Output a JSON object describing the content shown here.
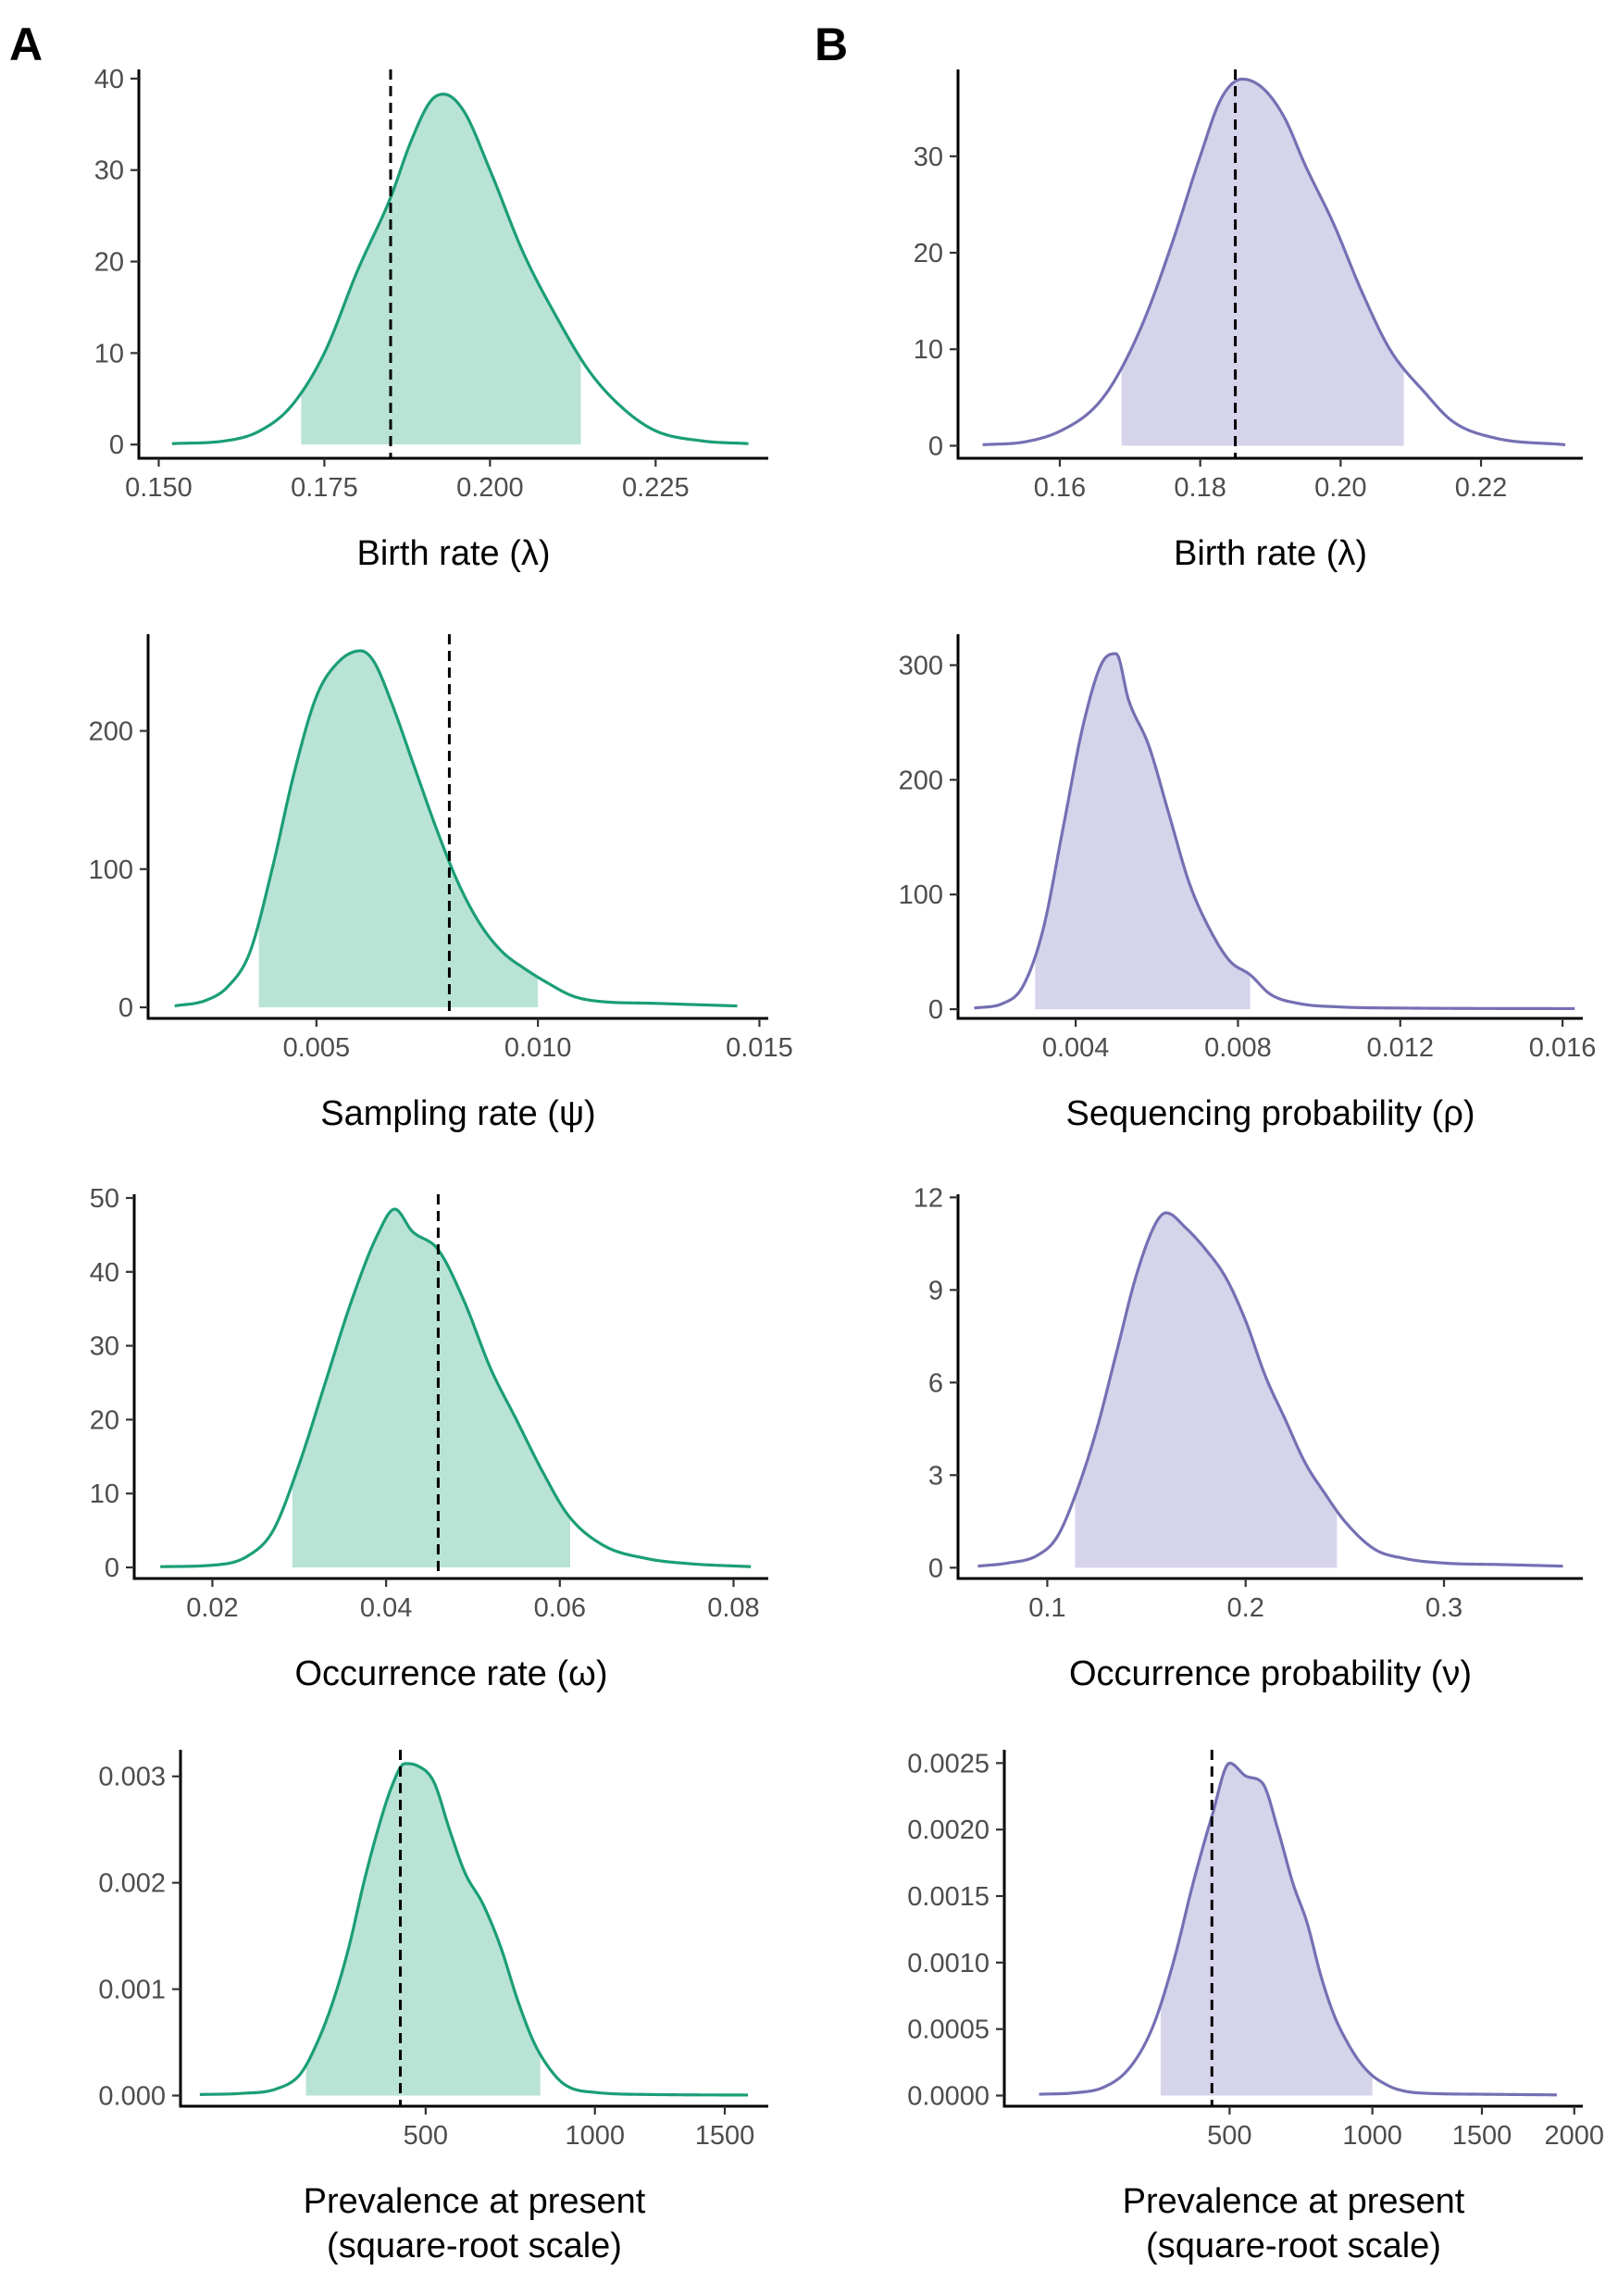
{
  "figure": {
    "panel_labels": [
      "A",
      "B"
    ],
    "colors": {
      "left_line": "#1b9e77",
      "left_fill": "#b9e3d5",
      "right_line": "#7570b3",
      "right_fill": "#d6d4eb",
      "reference_line": "#000000"
    }
  },
  "chart_data": [
    {
      "id": "A1",
      "column": "A",
      "type": "area",
      "xlabel": [
        "Birth rate (λ)"
      ],
      "xlim": [
        0.147,
        0.242
      ],
      "ylim": [
        -1.5,
        41
      ],
      "xticks": [
        0.15,
        0.175,
        0.2,
        0.225
      ],
      "xtick_labels": [
        "0.150",
        "0.175",
        "0.200",
        "0.225"
      ],
      "yticks": [
        0,
        10,
        20,
        30,
        40
      ],
      "ytick_labels": [
        "0",
        "10",
        "20",
        "30",
        "40"
      ],
      "x_scale": "linear",
      "reference_x": 0.185,
      "fill_interval": [
        0.1715,
        0.2137
      ],
      "density": [
        [
          0.152,
          0.1
        ],
        [
          0.16,
          0.4
        ],
        [
          0.165,
          1.4
        ],
        [
          0.17,
          4.2
        ],
        [
          0.175,
          10
        ],
        [
          0.18,
          19
        ],
        [
          0.185,
          27
        ],
        [
          0.188,
          33
        ],
        [
          0.191,
          37.5
        ],
        [
          0.193,
          38.3
        ],
        [
          0.196,
          36.5
        ],
        [
          0.2,
          30
        ],
        [
          0.205,
          21
        ],
        [
          0.21,
          14
        ],
        [
          0.215,
          8
        ],
        [
          0.22,
          4
        ],
        [
          0.225,
          1.5
        ],
        [
          0.232,
          0.4
        ],
        [
          0.239,
          0.1
        ]
      ]
    },
    {
      "id": "A2",
      "column": "A",
      "type": "area",
      "xlabel": [
        "Sampling rate (ψ)"
      ],
      "xlim": [
        0.0012,
        0.0152
      ],
      "ylim": [
        -8,
        270
      ],
      "xticks": [
        0.005,
        0.01,
        0.015
      ],
      "xtick_labels": [
        "0.005",
        "0.010",
        "0.015"
      ],
      "yticks": [
        0,
        100,
        200
      ],
      "ytick_labels": [
        "0",
        "100",
        "200"
      ],
      "x_scale": "linear",
      "reference_x": 0.008,
      "fill_interval": [
        0.0037,
        0.01
      ],
      "density": [
        [
          0.0018,
          1
        ],
        [
          0.0025,
          5
        ],
        [
          0.003,
          15
        ],
        [
          0.0035,
          40
        ],
        [
          0.004,
          100
        ],
        [
          0.0045,
          170
        ],
        [
          0.005,
          225
        ],
        [
          0.0055,
          250
        ],
        [
          0.006,
          258
        ],
        [
          0.0063,
          250
        ],
        [
          0.0067,
          220
        ],
        [
          0.0072,
          175
        ],
        [
          0.0077,
          130
        ],
        [
          0.0082,
          90
        ],
        [
          0.0087,
          60
        ],
        [
          0.0092,
          40
        ],
        [
          0.0097,
          28
        ],
        [
          0.0102,
          18
        ],
        [
          0.0108,
          8
        ],
        [
          0.0115,
          4
        ],
        [
          0.0125,
          3
        ],
        [
          0.0135,
          2
        ],
        [
          0.0145,
          1
        ]
      ]
    },
    {
      "id": "A3",
      "column": "A",
      "type": "area",
      "xlabel": [
        "Occurrence rate (ω)"
      ],
      "xlim": [
        0.011,
        0.084
      ],
      "ylim": [
        -1.5,
        50.5
      ],
      "xticks": [
        0.02,
        0.04,
        0.06,
        0.08
      ],
      "xtick_labels": [
        "0.02",
        "0.04",
        "0.06",
        "0.08"
      ],
      "yticks": [
        0,
        10,
        20,
        30,
        40,
        50
      ],
      "ytick_labels": [
        "0",
        "10",
        "20",
        "30",
        "40",
        "50"
      ],
      "x_scale": "linear",
      "reference_x": 0.046,
      "fill_interval": [
        0.0292,
        0.0612
      ],
      "density": [
        [
          0.014,
          0.1
        ],
        [
          0.02,
          0.3
        ],
        [
          0.024,
          1.5
        ],
        [
          0.027,
          5
        ],
        [
          0.03,
          14
        ],
        [
          0.033,
          25
        ],
        [
          0.036,
          36
        ],
        [
          0.039,
          45
        ],
        [
          0.041,
          48.5
        ],
        [
          0.043,
          45.5
        ],
        [
          0.046,
          43
        ],
        [
          0.049,
          36
        ],
        [
          0.052,
          27
        ],
        [
          0.055,
          20
        ],
        [
          0.058,
          13
        ],
        [
          0.061,
          7
        ],
        [
          0.065,
          3
        ],
        [
          0.07,
          1.2
        ],
        [
          0.075,
          0.5
        ],
        [
          0.082,
          0.1
        ]
      ]
    },
    {
      "id": "A4",
      "column": "A",
      "type": "area",
      "xlabel": [
        "Prevalence at present",
        "(square-root scale)"
      ],
      "xlim": [
        80,
        1690
      ],
      "ylim": [
        -0.0001,
        0.00325
      ],
      "xticks": [
        500,
        1000,
        1500
      ],
      "xtick_labels": [
        "500",
        "1000",
        "1500"
      ],
      "yticks": [
        0,
        0.001,
        0.002,
        0.003
      ],
      "ytick_labels": [
        "0.000",
        "0.001",
        "0.002",
        "0.003"
      ],
      "x_scale": "sqrt",
      "reference_x": 440,
      "fill_interval": [
        250,
        820
      ],
      "density": [
        [
          100,
          1e-05
        ],
        [
          150,
          2e-05
        ],
        [
          200,
          6e-05
        ],
        [
          240,
          0.0002
        ],
        [
          270,
          0.0005
        ],
        [
          300,
          0.0009
        ],
        [
          330,
          0.0014
        ],
        [
          360,
          0.002
        ],
        [
          390,
          0.0025
        ],
        [
          420,
          0.0029
        ],
        [
          450,
          0.00312
        ],
        [
          480,
          0.0031
        ],
        [
          520,
          0.00295
        ],
        [
          560,
          0.0025
        ],
        [
          600,
          0.0021
        ],
        [
          650,
          0.0018
        ],
        [
          700,
          0.0014
        ],
        [
          750,
          0.0009
        ],
        [
          800,
          0.0005
        ],
        [
          850,
          0.00025
        ],
        [
          900,
          0.0001
        ],
        [
          1000,
          3e-05
        ],
        [
          1200,
          1e-05
        ],
        [
          1600,
          5e-06
        ]
      ]
    },
    {
      "id": "B1",
      "column": "B",
      "type": "area",
      "xlabel": [
        "Birth rate (λ)"
      ],
      "xlim": [
        0.1455,
        0.2345
      ],
      "ylim": [
        -1.3,
        39
      ],
      "xticks": [
        0.16,
        0.18,
        0.2,
        0.22
      ],
      "xtick_labels": [
        "0.16",
        "0.18",
        "0.20",
        "0.22"
      ],
      "yticks": [
        0,
        10,
        20,
        30
      ],
      "ytick_labels": [
        "0",
        "10",
        "20",
        "30"
      ],
      "x_scale": "linear",
      "reference_x": 0.185,
      "fill_interval": [
        0.1688,
        0.209
      ],
      "density": [
        [
          0.149,
          0.1
        ],
        [
          0.155,
          0.4
        ],
        [
          0.16,
          1.5
        ],
        [
          0.165,
          4
        ],
        [
          0.168,
          7
        ],
        [
          0.172,
          13
        ],
        [
          0.176,
          21
        ],
        [
          0.18,
          30
        ],
        [
          0.183,
          36
        ],
        [
          0.186,
          38
        ],
        [
          0.189,
          37
        ],
        [
          0.192,
          34
        ],
        [
          0.195,
          29
        ],
        [
          0.199,
          23
        ],
        [
          0.203,
          16
        ],
        [
          0.207,
          10
        ],
        [
          0.212,
          5.5
        ],
        [
          0.216,
          2.5
        ],
        [
          0.222,
          0.8
        ],
        [
          0.232,
          0.1
        ]
      ]
    },
    {
      "id": "B2",
      "column": "B",
      "type": "area",
      "xlabel": [
        "Sequencing probability (ρ)"
      ],
      "xlim": [
        0.0011,
        0.0165
      ],
      "ylim": [
        -8,
        327
      ],
      "xticks": [
        0.004,
        0.008,
        0.012,
        0.016
      ],
      "xtick_labels": [
        "0.004",
        "0.008",
        "0.012",
        "0.016"
      ],
      "yticks": [
        0,
        100,
        200,
        300
      ],
      "ytick_labels": [
        "0",
        "100",
        "200",
        "300"
      ],
      "x_scale": "linear",
      "reference_x": null,
      "fill_interval": [
        0.003,
        0.0083
      ],
      "density": [
        [
          0.0015,
          1
        ],
        [
          0.0022,
          5
        ],
        [
          0.0027,
          20
        ],
        [
          0.0032,
          70
        ],
        [
          0.0037,
          160
        ],
        [
          0.0042,
          250
        ],
        [
          0.0047,
          305
        ],
        [
          0.005,
          310
        ],
        [
          0.0053,
          270
        ],
        [
          0.0058,
          230
        ],
        [
          0.0063,
          170
        ],
        [
          0.0068,
          110
        ],
        [
          0.0073,
          70
        ],
        [
          0.0078,
          42
        ],
        [
          0.0083,
          30
        ],
        [
          0.0088,
          13
        ],
        [
          0.0095,
          5
        ],
        [
          0.0105,
          2
        ],
        [
          0.012,
          1
        ],
        [
          0.0163,
          0.5
        ]
      ]
    },
    {
      "id": "B3",
      "column": "B",
      "type": "area",
      "xlabel": [
        "Occurrence probability (ν)"
      ],
      "xlim": [
        0.055,
        0.37
      ],
      "ylim": [
        -0.35,
        12.1
      ],
      "xticks": [
        0.1,
        0.2,
        0.3
      ],
      "xtick_labels": [
        "0.1",
        "0.2",
        "0.3"
      ],
      "yticks": [
        0,
        3,
        6,
        9,
        12
      ],
      "ytick_labels": [
        "0",
        "3",
        "6",
        "9",
        "12"
      ],
      "x_scale": "linear",
      "reference_x": null,
      "fill_interval": [
        0.114,
        0.246
      ],
      "density": [
        [
          0.065,
          0.05
        ],
        [
          0.08,
          0.15
        ],
        [
          0.095,
          0.4
        ],
        [
          0.105,
          1
        ],
        [
          0.115,
          2.5
        ],
        [
          0.125,
          4.5
        ],
        [
          0.135,
          7
        ],
        [
          0.145,
          9.5
        ],
        [
          0.155,
          11.2
        ],
        [
          0.16,
          11.5
        ],
        [
          0.17,
          11
        ],
        [
          0.18,
          10.3
        ],
        [
          0.19,
          9.4
        ],
        [
          0.2,
          8
        ],
        [
          0.21,
          6.2
        ],
        [
          0.22,
          4.8
        ],
        [
          0.23,
          3.4
        ],
        [
          0.24,
          2.4
        ],
        [
          0.25,
          1.5
        ],
        [
          0.265,
          0.6
        ],
        [
          0.28,
          0.3
        ],
        [
          0.3,
          0.15
        ],
        [
          0.33,
          0.1
        ],
        [
          0.36,
          0.05
        ]
      ]
    },
    {
      "id": "B4",
      "column": "B",
      "type": "area",
      "xlabel": [
        "Prevalence at present",
        "(square-root scale)"
      ],
      "xlim": [
        60,
        2050
      ],
      "ylim": [
        -8e-05,
        0.0026
      ],
      "xticks": [
        500,
        1000,
        1500,
        2000
      ],
      "xtick_labels": [
        "500",
        "1000",
        "1500",
        "2000"
      ],
      "yticks": [
        0,
        0.0005,
        0.001,
        0.0015,
        0.002,
        0.0025
      ],
      "ytick_labels": [
        "0.0000",
        "0.0005",
        "0.0010",
        "0.0015",
        "0.0020",
        "0.0025"
      ],
      "x_scale": "sqrt",
      "reference_x": 450,
      "fill_interval": [
        320,
        1000
      ],
      "density": [
        [
          100,
          1e-05
        ],
        [
          150,
          2e-05
        ],
        [
          200,
          6e-05
        ],
        [
          250,
          0.0002
        ],
        [
          300,
          0.0005
        ],
        [
          350,
          0.001
        ],
        [
          400,
          0.0016
        ],
        [
          450,
          0.0021
        ],
        [
          500,
          0.0025
        ],
        [
          550,
          0.0024
        ],
        [
          600,
          0.00235
        ],
        [
          650,
          0.002
        ],
        [
          700,
          0.0016
        ],
        [
          750,
          0.0013
        ],
        [
          800,
          0.0009
        ],
        [
          850,
          0.0006
        ],
        [
          900,
          0.0004
        ],
        [
          950,
          0.00025
        ],
        [
          1000,
          0.00015
        ],
        [
          1050,
          9e-05
        ],
        [
          1100,
          5e-05
        ],
        [
          1200,
          2e-05
        ],
        [
          1500,
          1e-05
        ],
        [
          1900,
          5e-06
        ]
      ]
    }
  ]
}
